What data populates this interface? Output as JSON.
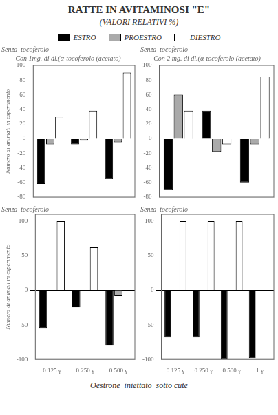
{
  "title": "RATTE IN AVITAMINOSI \"E\"",
  "subtitle": "(VALORI RELATIVI %)",
  "x_label": "Oestrone  iniettato  sotto cute",
  "legend": "top",
  "chart_data": [
    {
      "type": "bar",
      "title": "Con 1mg. di dl.(α-tocoferolo (acetato)",
      "annotations": [
        {
          "text": "Senza  tocoferolo"
        }
      ],
      "y_label": "Numero di animali in esperimento",
      "categories": [
        null,
        null,
        null
      ],
      "series": [
        {
          "name": "ESTRO",
          "color": "#000000",
          "values": [
            -62,
            -8,
            -55
          ]
        },
        {
          "name": "PROESTRO",
          "color": "#aaaaaa",
          "values": [
            -8,
            -2,
            -5
          ]
        },
        {
          "name": "DIESTRO",
          "color": "#ffffff",
          "values": [
            30,
            38,
            90
          ]
        }
      ],
      "ylim": [
        -80,
        100
      ],
      "yticks": [
        -80,
        -60,
        -40,
        -20,
        0,
        20,
        40,
        60,
        80,
        100
      ],
      "grid": false,
      "tick_labels": "y"
    },
    {
      "type": "bar",
      "title": "Con 2 mg. di dl.(α-tocoferolo (acetato)",
      "annotations": [
        {
          "text": "Senza  tocoferolo"
        }
      ],
      "categories": [
        null,
        null,
        null
      ],
      "series": [
        {
          "name": "ESTRO",
          "color": "#000000",
          "values": [
            -70,
            38,
            -60
          ]
        },
        {
          "name": "PROESTRO",
          "color": "#aaaaaa",
          "values": [
            60,
            -18,
            -8
          ]
        },
        {
          "name": "DIESTRO",
          "color": "#ffffff",
          "values": [
            38,
            -8,
            85
          ]
        }
      ],
      "ylim": [
        -80,
        100
      ],
      "yticks": [
        -80,
        -60,
        -40,
        -20,
        0,
        20,
        40,
        60,
        80,
        100
      ],
      "grid": false,
      "tick_labels": "y"
    },
    {
      "type": "bar",
      "annotations": [
        {
          "text": "Senza  tocoferolo"
        }
      ],
      "y_label": "Numero di animali in esperimento",
      "categories": [
        "0.125 γ",
        "0.250 γ",
        "0.500 γ"
      ],
      "series": [
        {
          "name": "ESTRO",
          "color": "#000000",
          "values": [
            -55,
            -25,
            -80
          ]
        },
        {
          "name": "PROESTRO",
          "color": "#aaaaaa",
          "values": [
            null,
            null,
            -8
          ]
        },
        {
          "name": "DIESTRO",
          "color": "#ffffff",
          "values": [
            100,
            62,
            0
          ]
        }
      ],
      "ylim": [
        -100,
        110
      ],
      "yticks": [
        -100,
        -50,
        0,
        50,
        100
      ],
      "grid": false
    },
    {
      "type": "bar",
      "annotations": [
        {
          "text": "Senza  tocoferolo"
        }
      ],
      "categories": [
        "0.125 γ",
        "0.250 γ",
        "0.500 γ",
        "1 γ"
      ],
      "series": [
        {
          "name": "ESTRO",
          "color": "#000000",
          "values": [
            -68,
            -68,
            -100,
            -98
          ]
        },
        {
          "name": "PROESTRO",
          "color": "#aaaaaa",
          "values": [
            null,
            null,
            null,
            null
          ]
        },
        {
          "name": "DIESTRO",
          "color": "#ffffff",
          "values": [
            100,
            100,
            100,
            0
          ]
        }
      ],
      "ylim": [
        -100,
        110
      ],
      "yticks": [
        -100,
        -50,
        0,
        50,
        100
      ],
      "grid": false
    }
  ]
}
